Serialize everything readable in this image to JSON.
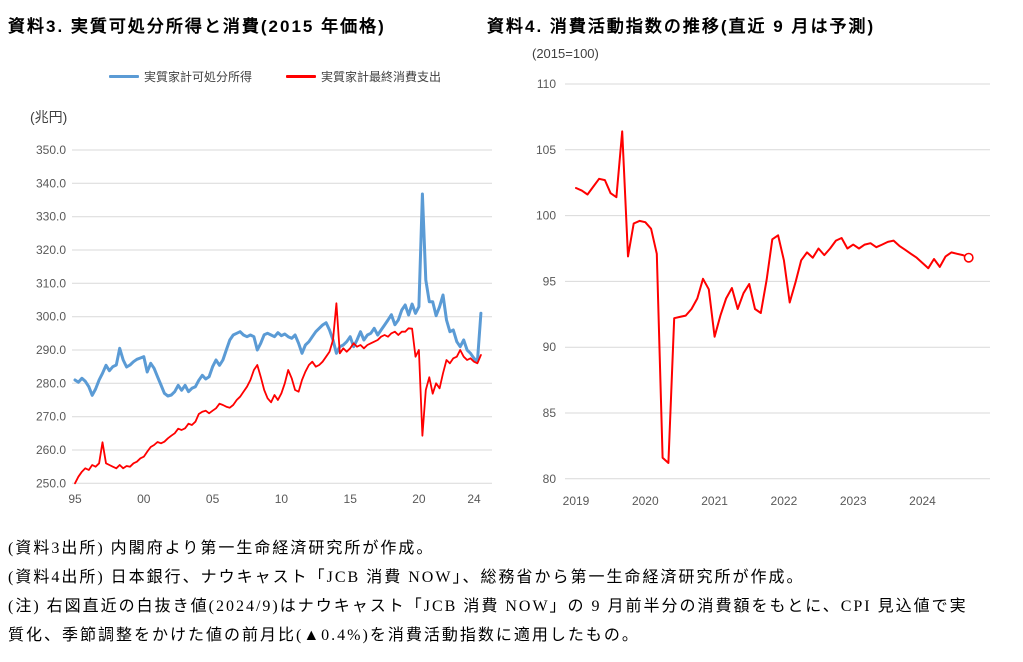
{
  "page": {
    "background": "#ffffff",
    "grid_color": "#D9D9D9",
    "axis_label_color": "#595959"
  },
  "footer": {
    "lines": [
      "(資料3出所) 内閣府より第一生命経済研究所が作成。",
      "(資料4出所) 日本銀行、ナウキャスト「JCB 消費 NOW」、総務省から第一生命経済研究所が作成。",
      "(注) 右図直近の白抜き値(2024/9)はナウキャスト「JCB 消費 NOW」の 9 月前半分の消費額をもとに、CPI 見込値で実",
      "質化、季節調整をかけた値の前月比(▲0.4%)を消費活動指数に適用したもの。"
    ]
  },
  "chart_data": [
    {
      "type": "line",
      "title": "資料3. 実質可処分所得と消費(2015 年価格)",
      "unit_label": "(兆円)",
      "legend_position": "top",
      "grid": true,
      "x_start": 1995,
      "x_step": 0.25,
      "ylim": [
        250,
        350
      ],
      "ytick_step": 10,
      "ytick_decimals": 1,
      "xticks": [
        {
          "label": "95",
          "t": 1995
        },
        {
          "label": "00",
          "t": 2000
        },
        {
          "label": "05",
          "t": 2005
        },
        {
          "label": "10",
          "t": 2010
        },
        {
          "label": "15",
          "t": 2015
        },
        {
          "label": "20",
          "t": 2020
        },
        {
          "label": "24",
          "t": 2024
        }
      ],
      "series": [
        {
          "name": "実質家計可処分所得",
          "color": "#5B9BD5",
          "width": 3,
          "values": [
            281,
            280.3,
            281.5,
            280.6,
            279,
            276.4,
            278.3,
            281,
            283,
            285.4,
            283.8,
            285,
            285.5,
            290.5,
            287,
            284.9,
            285.5,
            286.5,
            287.2,
            287.6,
            288,
            283.4,
            286,
            284.5,
            282,
            279.5,
            277,
            276.2,
            276.5,
            277.5,
            279.4,
            277.9,
            279.4,
            277.5,
            278.5,
            279,
            280.9,
            282.4,
            281.3,
            282,
            285,
            287,
            285.4,
            287,
            290,
            293,
            294.5,
            295,
            295.5,
            294.5,
            294,
            294.5,
            294,
            290,
            292,
            294.6,
            295,
            294.5,
            294,
            295.2,
            294.3,
            294.8,
            294,
            293.5,
            294.5,
            292,
            289,
            291.5,
            292.5,
            294,
            295.5,
            296.5,
            297.5,
            298.2,
            296,
            293,
            289,
            291,
            291.5,
            292.5,
            294,
            291,
            293,
            295.5,
            293,
            294.5,
            295,
            296.5,
            294.5,
            296,
            297.5,
            299,
            300.6,
            297.6,
            299,
            302,
            303.5,
            300.5,
            303.8,
            301,
            303,
            336.8,
            311,
            304.5,
            304.5,
            300.3,
            303,
            306.5,
            299,
            295.5,
            296,
            292.5,
            291,
            293,
            290,
            289,
            287.5,
            286.5,
            301
          ]
        },
        {
          "name": "実質家計最終消費支出",
          "color": "#FF0000",
          "width": 1.8,
          "values": [
            250,
            252,
            253.5,
            254.5,
            254,
            255.5,
            255,
            256,
            262.3,
            256,
            255.5,
            255,
            254.5,
            255.5,
            254.5,
            255.2,
            255,
            256,
            256.5,
            257.5,
            258,
            259.5,
            260.9,
            261.5,
            262.4,
            262,
            262.5,
            263.5,
            264.3,
            265,
            266.4,
            266,
            266.5,
            267.9,
            267.5,
            268.5,
            270.8,
            271.5,
            271.8,
            271,
            271.8,
            272.5,
            273.9,
            273.5,
            273,
            272.7,
            273.5,
            275,
            276,
            277.5,
            279,
            281,
            284,
            285.5,
            282,
            278,
            275.5,
            274.3,
            276.5,
            275,
            277,
            280,
            284,
            281.5,
            278,
            277.5,
            281,
            283.5,
            285.5,
            286.5,
            285,
            285.5,
            286.5,
            288,
            289.5,
            293,
            304,
            289,
            290.5,
            289.5,
            290.5,
            292,
            291,
            291.5,
            290.5,
            291.5,
            292,
            292.5,
            293,
            294,
            294.5,
            294,
            295,
            295.5,
            294.5,
            295.5,
            295.5,
            296.5,
            296.4,
            288,
            290,
            264.3,
            278,
            281.8,
            276.9,
            280,
            278.5,
            283,
            287,
            286,
            287.5,
            288,
            290,
            288,
            287,
            287.5,
            286.5,
            286,
            288.5
          ]
        }
      ]
    },
    {
      "type": "line",
      "title": "資料4. 消費活動指数の推移(直近 9 月は予測)",
      "unit_label": "(2015=100)",
      "grid": true,
      "x_start": 2019,
      "x_step": 0.0833333,
      "ylim": [
        80,
        110
      ],
      "ytick_step": 5,
      "ytick_decimals": 0,
      "xticks": [
        {
          "label": "2019",
          "t": 2019
        },
        {
          "label": "2020",
          "t": 2020
        },
        {
          "label": "2021",
          "t": 2021
        },
        {
          "label": "2022",
          "t": 2022
        },
        {
          "label": "2023",
          "t": 2023
        },
        {
          "label": "2024",
          "t": 2024
        }
      ],
      "series": [
        {
          "name": "消費活動指数",
          "color": "#FF0000",
          "width": 2,
          "end_marker": "open-circle",
          "end_marker_note": "2024/9 予測値(白抜き)",
          "values": [
            102.1,
            101.9,
            101.6,
            102.2,
            102.8,
            102.7,
            101.7,
            101.4,
            106.4,
            96.9,
            99.4,
            99.6,
            99.5,
            99,
            97.1,
            81.6,
            81.2,
            92.2,
            92.3,
            92.4,
            92.9,
            93.7,
            95.2,
            94.4,
            90.8,
            92.4,
            93.7,
            94.5,
            92.9,
            94.1,
            94.8,
            92.9,
            92.6,
            95.1,
            98.2,
            98.5,
            96.6,
            93.4,
            94.9,
            96.6,
            97.2,
            96.8,
            97.5,
            97,
            97.5,
            98.1,
            98.3,
            97.5,
            97.8,
            97.5,
            97.8,
            97.9,
            97.6,
            97.8,
            98,
            98.1,
            97.7,
            97.4,
            97.1,
            96.8,
            96.4,
            96,
            96.7,
            96.1,
            96.9,
            97.2,
            97.1,
            97,
            96.8
          ]
        }
      ]
    }
  ]
}
